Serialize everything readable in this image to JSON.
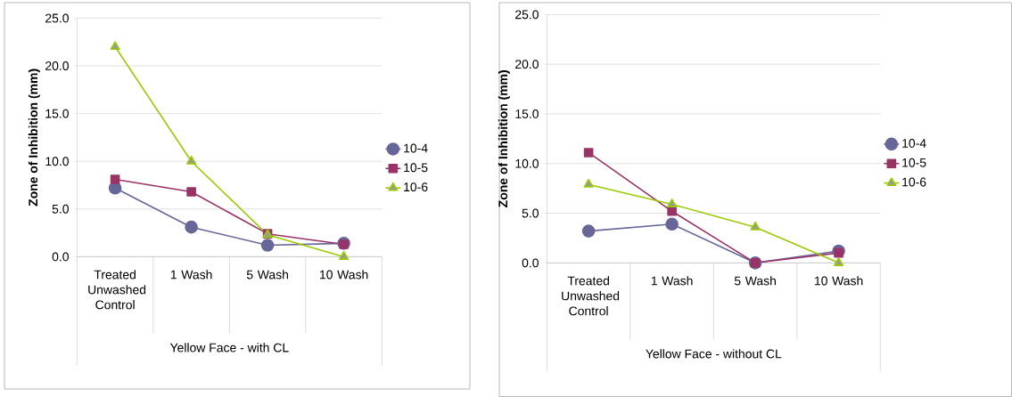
{
  "chart_data": [
    {
      "type": "line",
      "xlabel": "Yellow Face - with CL",
      "ylabel": "Zone of Inhibition (mm)",
      "categories": [
        "Treated Unwashed Control",
        "1 Wash",
        "5 Wash",
        "10 Wash"
      ],
      "series": [
        {
          "name": "10-4",
          "color": "#666699",
          "marker": "circle",
          "values": [
            7.2,
            3.1,
            1.2,
            1.4
          ]
        },
        {
          "name": "10-5",
          "color": "#993366",
          "marker": "square",
          "values": [
            8.1,
            6.8,
            2.4,
            1.3
          ]
        },
        {
          "name": "10-6",
          "color": "#99cc00",
          "marker": "triangle",
          "values": [
            22.0,
            10.0,
            2.3,
            0.0
          ]
        }
      ],
      "ylim": [
        0,
        25
      ],
      "yticks": [
        {
          "value": 0,
          "label": "0.0"
        },
        {
          "value": 5,
          "label": "5.0"
        },
        {
          "value": 10,
          "label": "10.0"
        },
        {
          "value": 15,
          "label": "15.0"
        },
        {
          "value": 20,
          "label": "20.0"
        },
        {
          "value": 25,
          "label": "25.0"
        }
      ],
      "grid": "y",
      "legend": "right"
    },
    {
      "type": "line",
      "xlabel": "Yellow Face - without CL",
      "ylabel": "Zone of Inhibition (mm)",
      "categories": [
        "Treated Unwashed Control",
        "1 Wash",
        "5 Wash",
        "10 Wash"
      ],
      "series": [
        {
          "name": "10-4",
          "color": "#666699",
          "marker": "circle",
          "values": [
            3.2,
            3.9,
            0.0,
            1.2
          ]
        },
        {
          "name": "10-5",
          "color": "#993366",
          "marker": "square",
          "values": [
            11.1,
            5.2,
            0.0,
            1.0
          ]
        },
        {
          "name": "10-6",
          "color": "#99cc00",
          "marker": "triangle",
          "values": [
            7.9,
            5.9,
            3.6,
            0.0
          ]
        }
      ],
      "ylim": [
        0,
        25
      ],
      "yticks": [
        {
          "value": 0,
          "label": "0.0"
        },
        {
          "value": 5,
          "label": "5.0"
        },
        {
          "value": 10,
          "label": "10.0"
        },
        {
          "value": 15,
          "label": "15.0"
        },
        {
          "value": 20,
          "label": "20.0"
        },
        {
          "value": 25,
          "label": "25.0"
        }
      ],
      "grid": "y",
      "legend": "right"
    }
  ]
}
